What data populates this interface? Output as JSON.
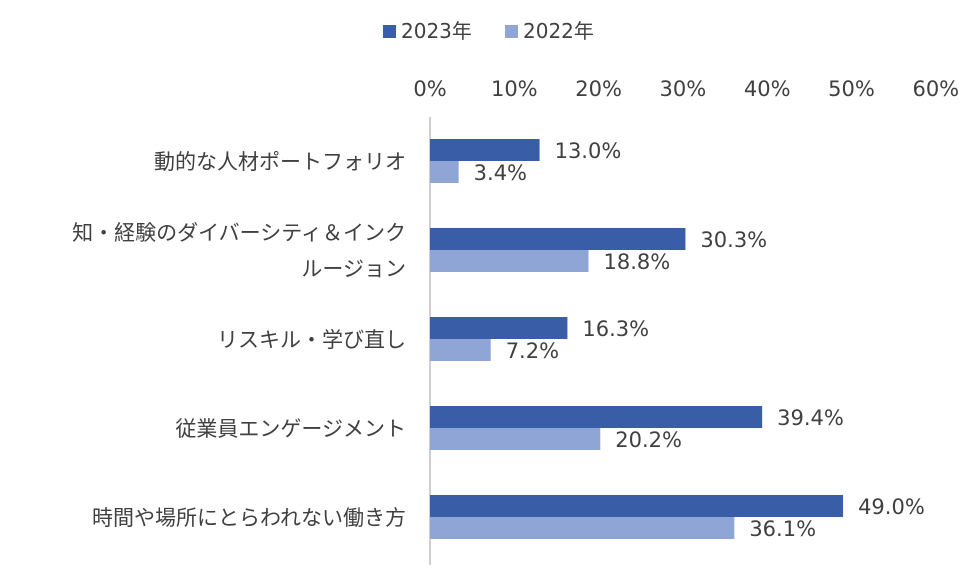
{
  "chart_data": {
    "type": "bar",
    "orientation": "horizontal",
    "categories": [
      [
        "動的な人材ポートフォリオ"
      ],
      [
        "知・経験のダイバーシティ＆インク",
        "ルージョン"
      ],
      [
        "リスキル・学び直し"
      ],
      [
        "従業員エンゲージメント"
      ],
      [
        "時間や場所にとらわれない働き方"
      ]
    ],
    "series": [
      {
        "name": "2023年",
        "color": "#3a5da8",
        "values": [
          13.0,
          30.3,
          16.3,
          39.4,
          49.0
        ],
        "labels": [
          "13.0%",
          "30.3%",
          "16.3%",
          "39.4%",
          "49.0%"
        ]
      },
      {
        "name": "2022年",
        "color": "#8fa5d6",
        "values": [
          3.4,
          18.8,
          7.2,
          20.2,
          36.1
        ],
        "labels": [
          "3.4%",
          "18.8%",
          "7.2%",
          "20.2%",
          "36.1%"
        ]
      }
    ],
    "xlim": [
      0,
      60
    ],
    "xticks": [
      "0%",
      "10%",
      "20%",
      "30%",
      "40%",
      "50%",
      "60%"
    ],
    "xtick_values": [
      0,
      10,
      20,
      30,
      40,
      50,
      60
    ],
    "axis_position": "top",
    "legend_position": "top",
    "grid": false,
    "title": "",
    "xlabel": "",
    "ylabel": ""
  }
}
